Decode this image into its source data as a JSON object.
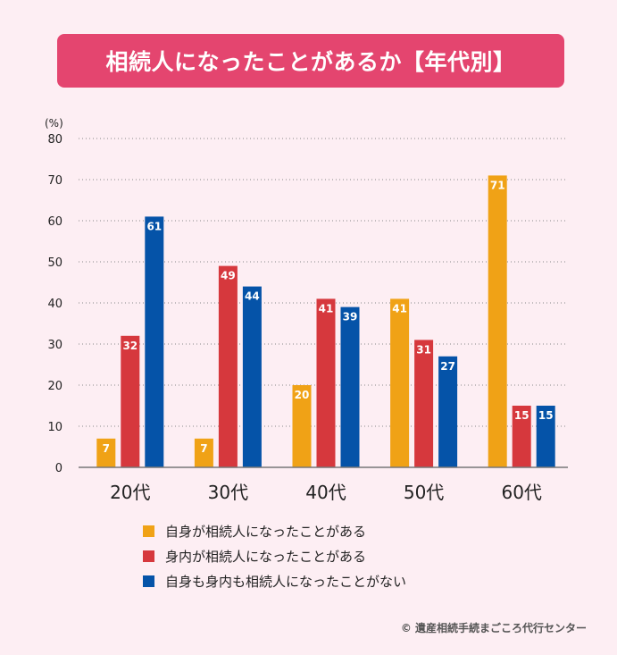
{
  "title": "相続人になったことがあるか【年代別】",
  "copyright": "© 遺産相続手続まごころ代行センター",
  "colors": {
    "background": "#fdeef3",
    "title_bg": "#e4456f",
    "series": [
      "#f0a216",
      "#d6383d",
      "#0553a8"
    ]
  },
  "chart_data": {
    "type": "bar",
    "ylabel": "(%)",
    "ylim": [
      0,
      80
    ],
    "yticks": [
      0,
      10,
      20,
      30,
      40,
      50,
      60,
      70,
      80
    ],
    "grid": "dotted-horizontal",
    "legend_position": "bottom",
    "categories": [
      "20代",
      "30代",
      "40代",
      "50代",
      "60代"
    ],
    "series": [
      {
        "name": "自身が相続人になったことがある",
        "values": [
          7,
          7,
          20,
          41,
          71
        ]
      },
      {
        "name": "身内が相続人になったことがある",
        "values": [
          32,
          49,
          41,
          31,
          15
        ]
      },
      {
        "name": "自身も身内も相続人になったことがない",
        "values": [
          61,
          44,
          39,
          27,
          15
        ]
      }
    ]
  }
}
